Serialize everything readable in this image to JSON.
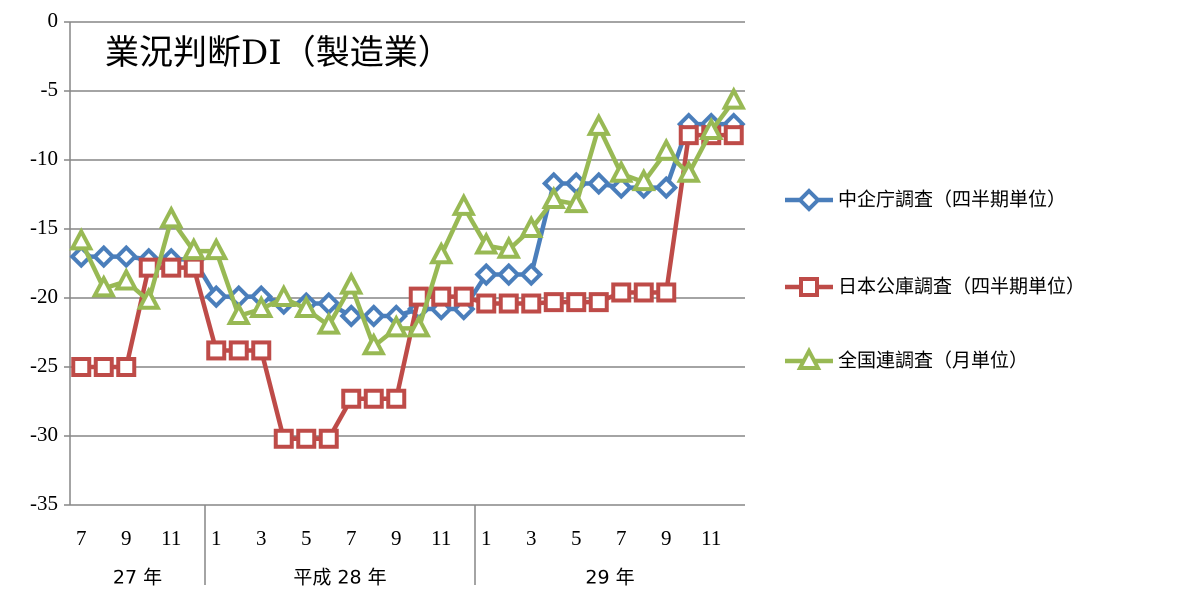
{
  "chart_data": {
    "type": "line",
    "title": "業況判断DI（製造業）",
    "categories": [
      "7",
      null,
      "9",
      null,
      "11",
      null,
      "1",
      null,
      "3",
      null,
      "5",
      null,
      "7",
      null,
      "9",
      null,
      "11",
      null,
      "1",
      null,
      "3",
      null,
      "5",
      null,
      "7",
      null,
      "9",
      null,
      "11",
      null
    ],
    "year_labels": [
      "27 年",
      "平成 28 年",
      "29 年"
    ],
    "series": [
      {
        "name": "中企庁調査（四半期単位）",
        "color": "#4a7ebb",
        "marker": "diamond",
        "values": [
          -17,
          -17,
          -17,
          -17.2,
          -17.2,
          -17.2,
          -19.9,
          -19.9,
          -19.9,
          -20.4,
          -20.4,
          -20.4,
          -21.3,
          -21.3,
          -21.3,
          -20.8,
          -20.8,
          -20.8,
          -18.3,
          -18.3,
          -18.3,
          -11.7,
          -11.7,
          -11.7,
          -12,
          -12,
          -12,
          -7.4,
          -7.4,
          -7.4
        ]
      },
      {
        "name": "日本公庫調査（四半期単位）",
        "color": "#be4b48",
        "marker": "square",
        "values": [
          -25,
          -25,
          -25,
          -17.8,
          -17.8,
          -17.8,
          -23.8,
          -23.8,
          -23.8,
          -30.2,
          -30.2,
          -30.2,
          -27.3,
          -27.3,
          -27.3,
          -19.9,
          -19.9,
          -19.9,
          -20.4,
          -20.4,
          -20.4,
          -20.3,
          -20.3,
          -20.3,
          -19.6,
          -19.6,
          -19.6,
          -8.2,
          -8.2,
          -8.2
        ]
      },
      {
        "name": "全国連調査（月単位）",
        "color": "#98b954",
        "marker": "triangle",
        "values": [
          -15.9,
          -19.3,
          -18.8,
          -20.2,
          -14.3,
          -16.6,
          -16.6,
          -21.3,
          -20.8,
          -20,
          -20.8,
          -22,
          -19.1,
          -23.5,
          -22.2,
          -22.2,
          -16.9,
          -13.4,
          -16.2,
          -16.5,
          -15,
          -12.9,
          -13.2,
          -7.6,
          -11,
          -11.6,
          -9.4,
          -11,
          -7.9,
          -5.7
        ]
      }
    ],
    "ylim": [
      -35,
      0
    ],
    "yticks": [
      0,
      -5,
      -10,
      -15,
      -20,
      -25,
      -30,
      -35
    ],
    "grid": true
  }
}
